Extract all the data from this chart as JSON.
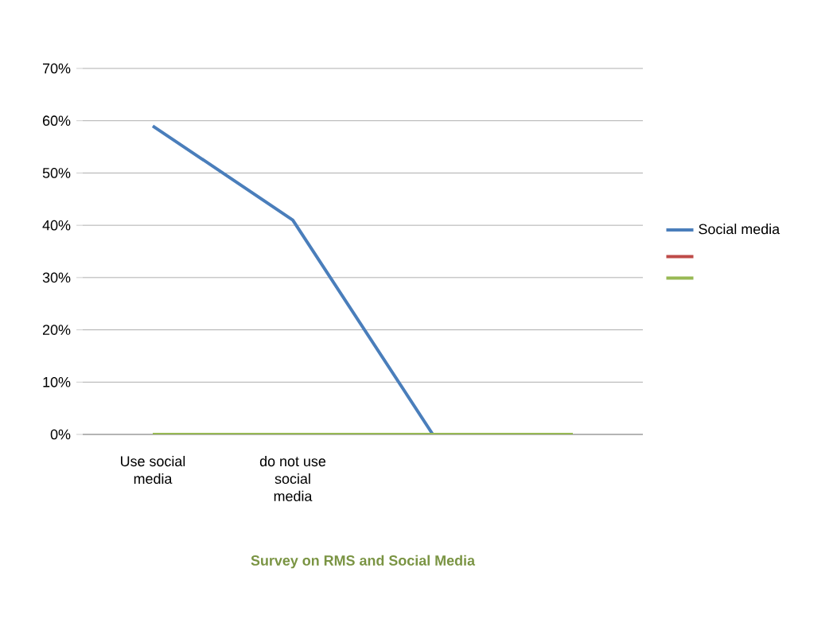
{
  "chart_data": {
    "type": "line",
    "title": "Survey on RMS and Social Media",
    "categories": [
      "Use social media",
      "do not use social media",
      null,
      null
    ],
    "series": [
      {
        "name": "Social media",
        "color": "#4a7ebb",
        "values": [
          59,
          41,
          0,
          null
        ]
      },
      {
        "color": "#be4b48",
        "values": [
          null,
          null,
          null,
          null
        ]
      },
      {
        "color": "#98b954",
        "values": [
          0,
          0,
          0,
          0
        ]
      }
    ],
    "ylim": [
      0,
      70
    ],
    "yticks": [
      {
        "value": 0,
        "label": "0%"
      },
      {
        "value": 10,
        "label": "10%"
      },
      {
        "value": 20,
        "label": "20%"
      },
      {
        "value": 30,
        "label": "30%"
      },
      {
        "value": 40,
        "label": "40%"
      },
      {
        "value": 50,
        "label": "50%"
      },
      {
        "value": 60,
        "label": "60%"
      },
      {
        "value": 70,
        "label": "70%"
      }
    ],
    "grid": "y",
    "legend": "right",
    "marker": "none",
    "line_style": "solid"
  }
}
